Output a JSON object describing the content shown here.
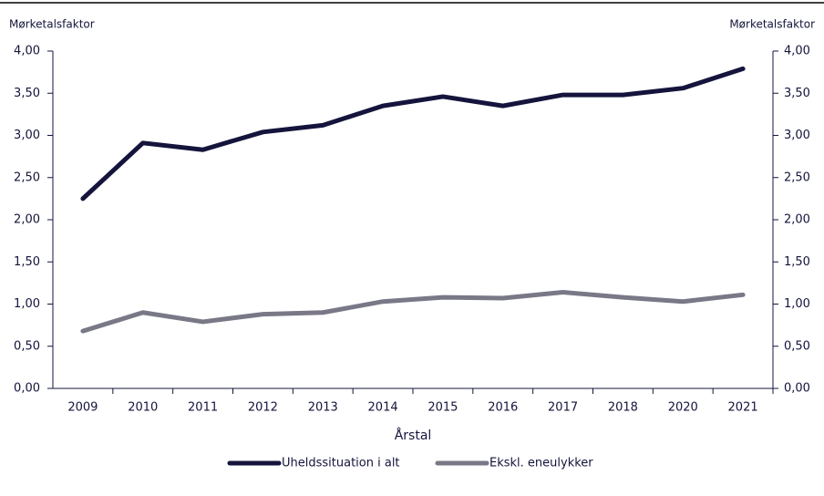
{
  "chart_data": {
    "type": "line",
    "y_label": "Mørketalsfaktor",
    "y2_label": "Mørketalsfaktor",
    "x_label": "Årstal",
    "categories": [
      "2009",
      "2010",
      "2011",
      "2012",
      "2013",
      "2014",
      "2015",
      "2016",
      "2017",
      "2018",
      "2020",
      "2021"
    ],
    "series": [
      {
        "name": "Uheldssituation i alt",
        "color": "#14143c",
        "values": [
          2.25,
          2.91,
          2.83,
          3.04,
          3.12,
          3.35,
          3.46,
          3.35,
          3.48,
          3.48,
          3.56,
          3.79
        ]
      },
      {
        "name": "Ekskl. eneulykker",
        "color": "#787887",
        "values": [
          0.68,
          0.9,
          0.79,
          0.88,
          0.9,
          1.03,
          1.08,
          1.07,
          1.14,
          1.08,
          1.03,
          1.11
        ]
      }
    ],
    "ylim": [
      0,
      4
    ],
    "yticks": [
      {
        "value": 0,
        "label": "0,00"
      },
      {
        "value": 0.5,
        "label": "0,50"
      },
      {
        "value": 1,
        "label": "1,00"
      },
      {
        "value": 1.5,
        "label": "1,50"
      },
      {
        "value": 2,
        "label": "2,00"
      },
      {
        "value": 2.5,
        "label": "2,50"
      },
      {
        "value": 3,
        "label": "3,00"
      },
      {
        "value": 3.5,
        "label": "3,50"
      },
      {
        "value": 4,
        "label": "4,00"
      }
    ],
    "y2lim": [
      0,
      4
    ],
    "y2ticks": [
      {
        "value": 0,
        "label": "0,00"
      },
      {
        "value": 0.5,
        "label": "0,50"
      },
      {
        "value": 1,
        "label": "1,00"
      },
      {
        "value": 1.5,
        "label": "1,50"
      },
      {
        "value": 2,
        "label": "2,00"
      },
      {
        "value": 2.5,
        "label": "2,50"
      },
      {
        "value": 3,
        "label": "3,00"
      },
      {
        "value": 3.5,
        "label": "3,50"
      },
      {
        "value": 4,
        "label": "4,00"
      }
    ],
    "legend": "bottom"
  }
}
